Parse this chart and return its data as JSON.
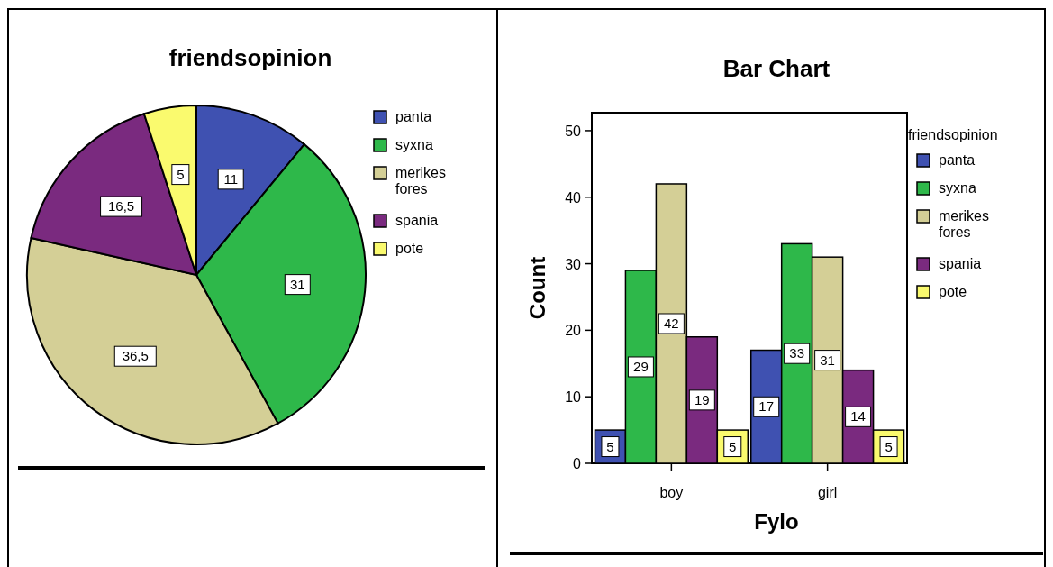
{
  "chart_data": [
    {
      "type": "pie",
      "title": "friendsopinion",
      "categories": [
        "panta",
        "syxna",
        "merikes fores",
        "spania",
        "pote"
      ],
      "values": [
        11,
        31,
        36.5,
        16.5,
        5
      ],
      "value_labels": [
        "11",
        "31",
        "36,5",
        "16,5",
        "5"
      ],
      "colors": [
        "#3f51b1",
        "#2eb84a",
        "#d4cf96",
        "#7a2a7f",
        "#fafa6e"
      ],
      "legend": "right"
    },
    {
      "type": "bar",
      "title": "Bar Chart",
      "xlabel": "Fylo",
      "ylabel": "Count",
      "legend_title": "friendsopinion",
      "categories": [
        "boy",
        "girl"
      ],
      "series": [
        {
          "name": "panta",
          "color": "#3f51b1",
          "values": [
            5,
            17
          ]
        },
        {
          "name": "syxna",
          "color": "#2eb84a",
          "values": [
            29,
            33
          ]
        },
        {
          "name": "merikes fores",
          "color": "#d4cf96",
          "values": [
            42,
            31
          ]
        },
        {
          "name": "spania",
          "color": "#7a2a7f",
          "values": [
            19,
            14
          ]
        },
        {
          "name": "pote",
          "color": "#fafa6e",
          "values": [
            5,
            5
          ]
        }
      ],
      "ylim": [
        0,
        52.7
      ],
      "yticks": [
        0,
        10,
        20,
        30,
        40,
        50
      ],
      "data_labels": true,
      "legend": "right"
    }
  ]
}
